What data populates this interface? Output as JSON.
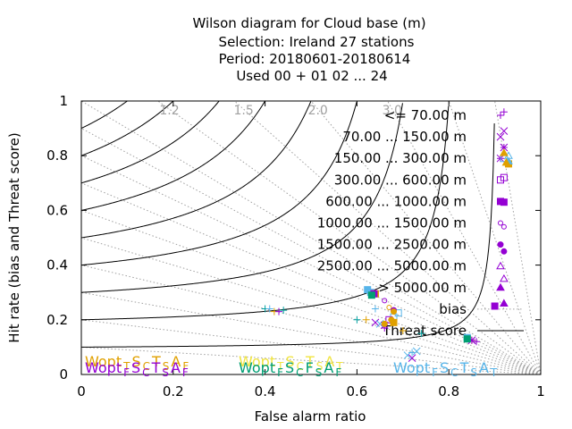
{
  "chart_data": {
    "type": "scatter",
    "title_lines": [
      "Wilson diagram  for Cloud base (m)",
      "Selection: Ireland      27 stations",
      "Period: 20180601-20180614",
      "Used  00 + 01 02 ... 24"
    ],
    "xlabel": "False alarm ratio",
    "ylabel": "Hit rate (bias and Threat score)",
    "xlim": [
      0,
      1
    ],
    "ylim": [
      0,
      1
    ],
    "x_ticks": [
      "0",
      "0.2",
      "0.4",
      "0.6",
      "0.8",
      "1"
    ],
    "y_ticks": [
      "0",
      "0.2",
      "0.4",
      "0.6",
      "0.8",
      "1"
    ],
    "bias_labels": [
      "1.2",
      "1.5",
      "2.0",
      "3.0"
    ],
    "bias_values": [
      0.1,
      0.2,
      0.3,
      0.4,
      0.5,
      0.6,
      0.7,
      0.8,
      0.9,
      1.0,
      1.2,
      1.5,
      2.0,
      3.0,
      5.0,
      10.0
    ],
    "threat_score_values": [
      0.1,
      0.2,
      0.3,
      0.4,
      0.5,
      0.6,
      0.7,
      0.8,
      0.9
    ],
    "legend": [
      {
        "label": "<= 70.00 m",
        "color": "#9400d3",
        "marker": "plus"
      },
      {
        "label": "70.00 ... 150.00 m",
        "color": "#9400d3",
        "marker": "cross"
      },
      {
        "label": "150.00 ... 300.00 m",
        "color": "#9400d3",
        "marker": "star"
      },
      {
        "label": "300.00 ... 600.00 m",
        "color": "#9400d3",
        "marker": "square-open"
      },
      {
        "label": "600.00 ... 1000.00 m",
        "color": "#9400d3",
        "marker": "square"
      },
      {
        "label": "1000.00 ... 1500.00 m",
        "color": "#9400d3",
        "marker": "circle-open"
      },
      {
        "label": "1500.00 ... 2500.00 m",
        "color": "#9400d3",
        "marker": "circle"
      },
      {
        "label": "2500.00 ... 5000.00 m",
        "color": "#9400d3",
        "marker": "triangle-open"
      },
      {
        "label": "> 5000.00 m",
        "color": "#9400d3",
        "marker": "triangle"
      },
      {
        "label": "bias",
        "color": "#a0a0a0",
        "marker": "dotted-line"
      },
      {
        "label": "Threat score",
        "color": "#000000",
        "marker": "solid-line"
      }
    ],
    "series": [
      {
        "color": "#00a0a0",
        "marker": "plus",
        "points": [
          [
            0.4,
            0.24
          ],
          [
            0.44,
            0.235
          ],
          [
            0.6,
            0.2
          ],
          [
            0.74,
            0.15
          ],
          [
            0.84,
            0.13
          ]
        ]
      },
      {
        "color": "#e0a000",
        "marker": "plus",
        "points": [
          [
            0.42,
            0.23
          ],
          [
            0.62,
            0.2
          ],
          [
            0.7,
            0.16
          ],
          [
            0.85,
            0.125
          ]
        ]
      },
      {
        "color": "#56b4e9",
        "marker": "plus",
        "points": [
          [
            0.41,
            0.24
          ],
          [
            0.64,
            0.24
          ],
          [
            0.72,
            0.08
          ]
        ]
      },
      {
        "color": "#9400d3",
        "marker": "plus",
        "points": [
          [
            0.43,
            0.23
          ],
          [
            0.66,
            0.17
          ],
          [
            0.86,
            0.12
          ],
          [
            0.92,
            0.96
          ]
        ]
      },
      {
        "color": "#9400d3",
        "marker": "cross",
        "points": [
          [
            0.64,
            0.19
          ],
          [
            0.72,
            0.06
          ],
          [
            0.92,
            0.89
          ]
        ]
      },
      {
        "color": "#56b4e9",
        "marker": "cross",
        "points": [
          [
            0.71,
            0.07
          ],
          [
            0.73,
            0.085
          ],
          [
            0.65,
            0.185
          ]
        ]
      },
      {
        "color": "#9400d3",
        "marker": "star",
        "points": [
          [
            0.66,
            0.18
          ],
          [
            0.85,
            0.125
          ],
          [
            0.92,
            0.83
          ]
        ]
      },
      {
        "color": "#56b4e9",
        "marker": "square-open",
        "points": [
          [
            0.68,
            0.21
          ],
          [
            0.69,
            0.225
          ],
          [
            0.92,
            0.79
          ]
        ]
      },
      {
        "color": "#9400d3",
        "marker": "square-open",
        "points": [
          [
            0.67,
            0.2
          ],
          [
            0.92,
            0.72
          ]
        ]
      },
      {
        "color": "#56b4e9",
        "marker": "square",
        "points": [
          [
            0.623,
            0.31
          ],
          [
            0.63,
            0.3
          ],
          [
            0.84,
            0.135
          ]
        ]
      },
      {
        "color": "#e0a000",
        "marker": "square",
        "points": [
          [
            0.64,
            0.295
          ],
          [
            0.68,
            0.19
          ],
          [
            0.93,
            0.77
          ]
        ]
      },
      {
        "color": "#9400d3",
        "marker": "square",
        "points": [
          [
            0.637,
            0.295
          ],
          [
            0.9,
            0.25
          ],
          [
            0.92,
            0.63
          ]
        ]
      },
      {
        "color": "#009e73",
        "marker": "square",
        "points": [
          [
            0.632,
            0.29
          ],
          [
            0.84,
            0.13
          ]
        ]
      },
      {
        "color": "#9400d3",
        "marker": "circle-open",
        "points": [
          [
            0.66,
            0.27
          ],
          [
            0.92,
            0.54
          ]
        ]
      },
      {
        "color": "#e0a000",
        "marker": "circle-open",
        "points": [
          [
            0.67,
            0.245
          ]
        ]
      },
      {
        "color": "#9400d3",
        "marker": "circle",
        "points": [
          [
            0.68,
            0.235
          ],
          [
            0.92,
            0.45
          ]
        ]
      },
      {
        "color": "#e0a000",
        "marker": "circle",
        "points": [
          [
            0.675,
            0.2
          ],
          [
            0.68,
            0.23
          ],
          [
            0.66,
            0.185
          ]
        ]
      },
      {
        "color": "#9400d3",
        "marker": "triangle-open",
        "points": [
          [
            0.92,
            0.35
          ]
        ]
      },
      {
        "color": "#56b4e9",
        "marker": "triangle-open",
        "points": [
          [
            0.93,
            0.8
          ]
        ]
      },
      {
        "color": "#9400d3",
        "marker": "triangle",
        "points": [
          [
            0.92,
            0.26
          ]
        ]
      },
      {
        "color": "#56b4e9",
        "marker": "triangle",
        "points": [
          [
            0.93,
            0.78
          ]
        ]
      },
      {
        "color": "#e0a000",
        "marker": "triangle",
        "points": [
          [
            0.925,
            0.775
          ],
          [
            0.92,
            0.81
          ]
        ]
      }
    ],
    "wopt_labels": [
      {
        "text": "Wopt",
        "subs": [
          "T",
          "S",
          "C",
          "T",
          "S",
          "A",
          "F"
        ],
        "color": "#e0a000",
        "row": 0,
        "col": 0
      },
      {
        "text": "Wopt",
        "subs": [
          "F",
          "S",
          "C",
          "T",
          "S",
          "A",
          "F"
        ],
        "color": "#9400d3",
        "row": 1,
        "col": 0
      },
      {
        "text": "Wopt",
        "subs": [
          "T",
          "S",
          "C",
          "T",
          "S",
          "A",
          "T"
        ],
        "color": "#f0e442",
        "row": 0,
        "col": 1
      },
      {
        "text": "Wopt",
        "subs": [
          "F",
          "S",
          "C",
          "F",
          "S",
          "A",
          "F"
        ],
        "color": "#009e73",
        "row": 1,
        "col": 1
      },
      {
        "text": "Wopt",
        "subs": [
          "F",
          "S",
          "C",
          "T",
          "S",
          "A",
          "T"
        ],
        "color": "#56b4e9",
        "row": 1,
        "col": 2
      }
    ]
  }
}
